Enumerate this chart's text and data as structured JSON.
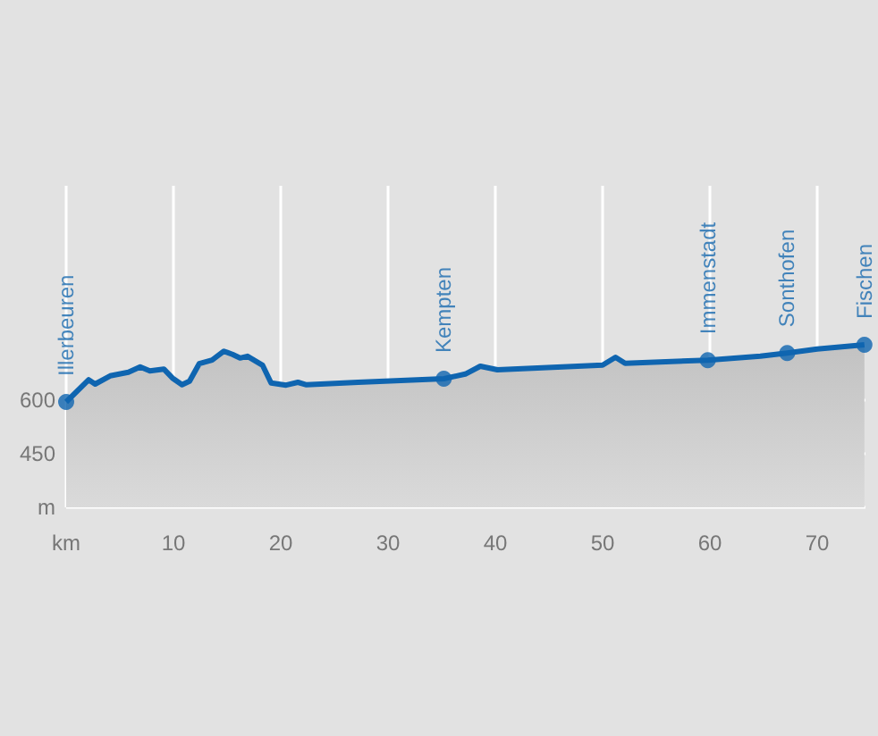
{
  "chart_data": {
    "type": "area",
    "x": [
      0,
      2.1,
      2.7,
      4.1,
      5.8,
      6.9,
      7.8,
      9.1,
      9.9,
      10.8,
      11.5,
      12.4,
      13.6,
      14.7,
      15.5,
      16.2,
      16.9,
      18.3,
      19.1,
      20.5,
      21.6,
      22.4,
      27.2,
      32.7,
      35.2,
      37.2,
      38.6,
      40.2,
      50,
      51.2,
      52.1,
      59.8,
      64.7,
      67.2,
      70,
      74.4
    ],
    "series": [
      {
        "color": "#0f65b0",
        "values": [
          595,
          657,
          645,
          668,
          678,
          693,
          682,
          687,
          662,
          643,
          653,
          702,
          712,
          737,
          728,
          718,
          723,
          698,
          648,
          642,
          650,
          643,
          650,
          657,
          660,
          673,
          695,
          685,
          698,
          720,
          703,
          712,
          723,
          732,
          743,
          755
        ]
      }
    ],
    "xlim": [
      0,
      74.5
    ],
    "xticks": [
      {
        "value": 0,
        "label": "km"
      },
      10,
      20,
      30,
      40,
      50,
      60,
      70
    ],
    "ylim": [
      300,
      1200
    ],
    "yticks": [
      {
        "value": 300,
        "label": "m"
      },
      450,
      600
    ],
    "grid": true,
    "marker": "none",
    "annotations": [
      {
        "text": "Illerbeuren",
        "x": 0,
        "y": 595
      },
      {
        "text": "Kempten",
        "x": 35.2,
        "y": 660
      },
      {
        "text": "Immenstadt",
        "x": 59.8,
        "y": 712
      },
      {
        "text": "Sonthofen",
        "x": 67.2,
        "y": 732
      },
      {
        "text": "Fischen",
        "x": 74.4,
        "y": 755
      }
    ]
  }
}
